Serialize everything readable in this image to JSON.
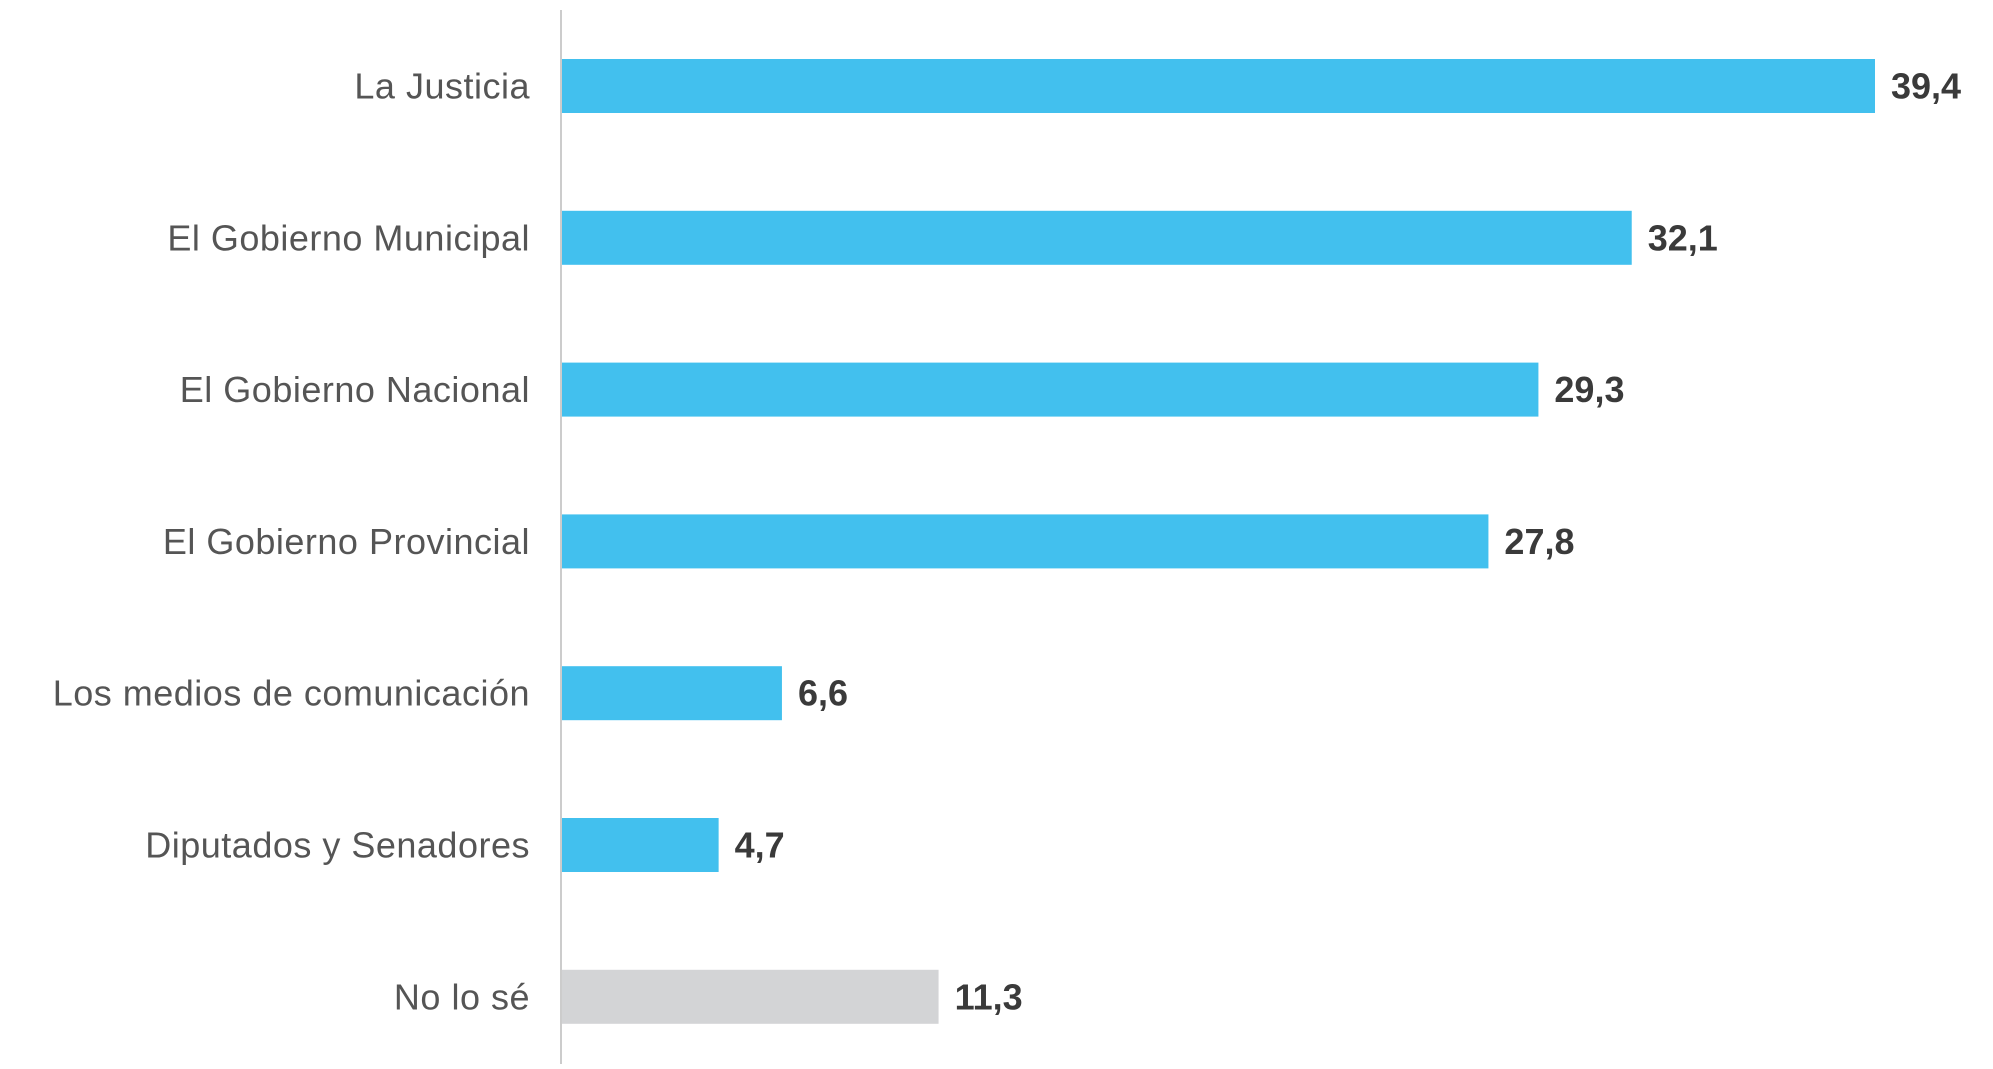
{
  "chart_data": {
    "type": "bar",
    "orientation": "horizontal",
    "categories": [
      "La Justicia",
      "El Gobierno Municipal",
      "El Gobierno Nacional",
      "El Gobierno Provincial",
      "Los medios de comunicación",
      "Diputados y Senadores",
      "No lo sé"
    ],
    "values": [
      39.4,
      32.1,
      29.3,
      27.8,
      6.6,
      4.7,
      11.3
    ],
    "value_labels": [
      "39,4",
      "32,1",
      "29,3",
      "27,8",
      "6,6",
      "4,7",
      "11,3"
    ],
    "bar_colors": [
      "#42c0ee",
      "#42c0ee",
      "#42c0ee",
      "#42c0ee",
      "#42c0ee",
      "#42c0ee",
      "#d3d4d6"
    ],
    "xlim": [
      0,
      39.4
    ],
    "grid": false,
    "legend": "none",
    "title": "",
    "xlabel": "",
    "ylabel": ""
  }
}
